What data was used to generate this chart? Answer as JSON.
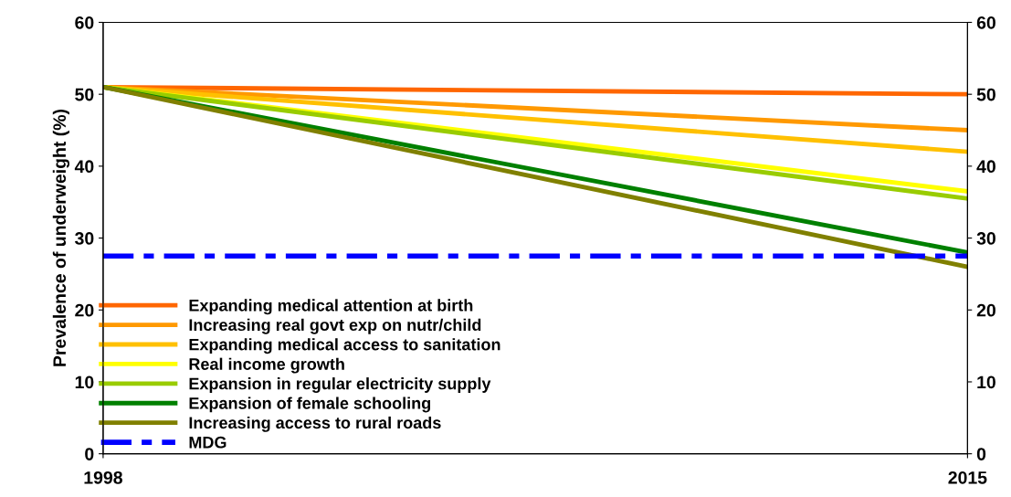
{
  "chart_data": {
    "type": "line",
    "ylabel": "Prevalence of underweight (%)",
    "x": [
      1998,
      2015
    ],
    "series": [
      {
        "name": "Expanding medical attention at birth",
        "color": "#ff6600",
        "values": [
          51,
          50
        ]
      },
      {
        "name": "Increasing real govt exp on nutr/child",
        "color": "#ff9900",
        "values": [
          51,
          45
        ]
      },
      {
        "name": "Expanding medical access to sanitation",
        "color": "#ffc000",
        "values": [
          51,
          42
        ]
      },
      {
        "name": "Real income growth",
        "color": "#ffff00",
        "values": [
          51,
          36.5
        ]
      },
      {
        "name": "Expansion in regular electricity supply",
        "color": "#99cc00",
        "values": [
          51,
          35.5
        ]
      },
      {
        "name": "Expansion of female schooling",
        "color": "#008000",
        "values": [
          51,
          28
        ]
      },
      {
        "name": "Increasing access to rural roads",
        "color": "#808000",
        "values": [
          51,
          26
        ]
      },
      {
        "name": "MDG",
        "color": "#0000ff",
        "values": [
          27.5,
          27.5
        ],
        "line_style": "dashed"
      }
    ],
    "xlim": [
      1998,
      2015
    ],
    "xticks": [
      1998,
      2015
    ],
    "ylim": [
      0,
      60
    ],
    "yticks": [
      0,
      10,
      20,
      30,
      40,
      50,
      60
    ],
    "y2lim": [
      0,
      60
    ],
    "y2ticks": [
      0,
      10,
      20,
      30,
      40,
      50,
      60
    ],
    "grid": false,
    "legend": "bottom left",
    "marker": "none",
    "line_style": "solid"
  }
}
